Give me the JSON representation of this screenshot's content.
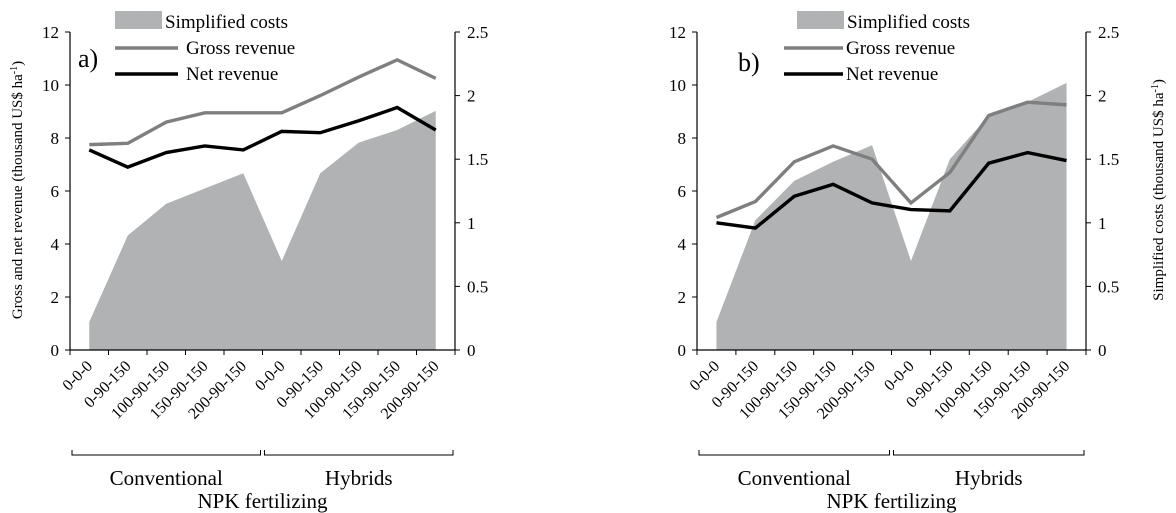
{
  "figure": {
    "y_axis_left_label_main": "Gross and net revenue (thousand US$ ha",
    "y_axis_left_label_sup": "-1",
    "y_axis_left_label_end": ")",
    "y_axis_right_label_main": "Simplified costs (thousand US$ ha",
    "y_axis_right_label_sup": "-1",
    "y_axis_right_label_end": ")"
  },
  "colors": {
    "area": "#b0b2b3",
    "gross": "#7f7f7f",
    "net": "#000000",
    "axis": "#000000"
  },
  "chart_data": [
    {
      "type": "line",
      "panel_label": "a)",
      "categories": [
        "0-0-0",
        "0-90-150",
        "100-90-150",
        "150-90-150",
        "200-90-150",
        "0-0-0",
        "0-90-150",
        "100-90-150",
        "150-90-150",
        "200-90-150"
      ],
      "groups": [
        {
          "name": "Conventional",
          "range": [
            0,
            4
          ]
        },
        {
          "name": "Hybrids",
          "range": [
            5,
            9
          ]
        }
      ],
      "xlabel": "NPK fertilizing",
      "ylim_left": [
        0,
        12
      ],
      "yticks_left": [
        0,
        2,
        4,
        6,
        8,
        10,
        12
      ],
      "ylim_right": [
        0,
        2.5
      ],
      "yticks_right": [
        "0",
        "0.5",
        "1",
        "1.5",
        "2",
        "2.5"
      ],
      "series": [
        {
          "name": "Simplified costs",
          "kind": "area",
          "axis": "right",
          "values": [
            0.22,
            0.9,
            1.15,
            1.27,
            1.39,
            0.7,
            1.39,
            1.63,
            1.73,
            1.88
          ]
        },
        {
          "name": "Gross revenue",
          "kind": "line",
          "axis": "left",
          "values": [
            7.75,
            7.8,
            8.6,
            8.95,
            8.95,
            8.95,
            9.6,
            10.3,
            10.95,
            10.25
          ]
        },
        {
          "name": "Net revenue",
          "kind": "line",
          "axis": "left",
          "values": [
            7.55,
            6.9,
            7.45,
            7.7,
            7.55,
            8.25,
            8.2,
            8.65,
            9.15,
            8.3
          ]
        }
      ],
      "legend": [
        "Simplified costs",
        "Gross revenue",
        "Net revenue"
      ],
      "legend_position": "top"
    },
    {
      "type": "line",
      "panel_label": "b)",
      "categories": [
        "0-0-0",
        "0-90-150",
        "100-90-150",
        "150-90-150",
        "200-90-150",
        "0-0-0",
        "0-90-150",
        "100-90-150",
        "150-90-150",
        "200-90-150"
      ],
      "groups": [
        {
          "name": "Conventional",
          "range": [
            0,
            4
          ]
        },
        {
          "name": "Hybrids",
          "range": [
            5,
            9
          ]
        }
      ],
      "xlabel": "NPK fertilizing",
      "ylim_left": [
        0,
        12
      ],
      "yticks_left": [
        0,
        2,
        4,
        6,
        8,
        10,
        12
      ],
      "ylim_right": [
        0,
        2.5
      ],
      "yticks_right": [
        "0",
        "0.5",
        "1",
        "1.5",
        "2",
        "2.5"
      ],
      "series": [
        {
          "name": "Simplified costs",
          "kind": "area",
          "axis": "right",
          "values": [
            0.22,
            1.02,
            1.33,
            1.48,
            1.61,
            0.7,
            1.5,
            1.84,
            1.95,
            2.1
          ]
        },
        {
          "name": "Gross revenue",
          "kind": "line",
          "axis": "left",
          "values": [
            5.0,
            5.6,
            7.1,
            7.7,
            7.2,
            5.55,
            6.7,
            8.85,
            9.35,
            9.25
          ]
        },
        {
          "name": "Net revenue",
          "kind": "line",
          "axis": "left",
          "values": [
            4.8,
            4.6,
            5.8,
            6.25,
            5.55,
            5.3,
            5.25,
            7.05,
            7.45,
            7.15
          ]
        }
      ],
      "legend": [
        "Simplified costs",
        "Gross revenue",
        "Net revenue"
      ],
      "legend_position": "top"
    }
  ]
}
